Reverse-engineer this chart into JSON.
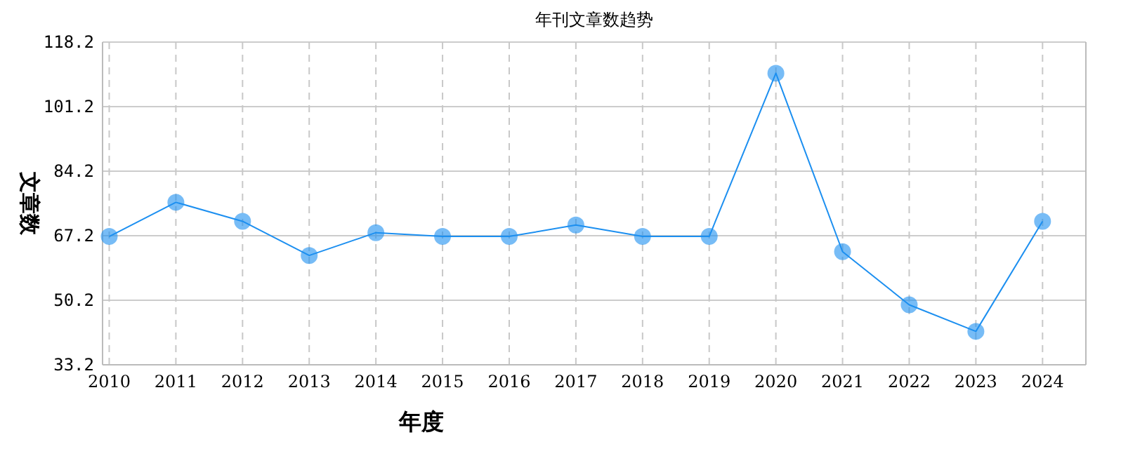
{
  "chart_data": {
    "type": "line",
    "title": "年刊文章数趋势",
    "xlabel": "年度",
    "ylabel": "文章数",
    "categories": [
      "2010",
      "2011",
      "2012",
      "2013",
      "2014",
      "2015",
      "2016",
      "2017",
      "2018",
      "2019",
      "2020",
      "2021",
      "2022",
      "2023",
      "2024"
    ],
    "series": [
      {
        "color": "#1c8ff0",
        "values": [
          67,
          76,
          71,
          62,
          68,
          67,
          67,
          70,
          67,
          67,
          110,
          63,
          49,
          42,
          71
        ]
      }
    ],
    "ylim": [
      33.2,
      118.2
    ],
    "yticks": [
      {
        "value": 33.2,
        "label": "33.2"
      },
      {
        "value": 50.2,
        "label": "50.2"
      },
      {
        "value": 67.2,
        "label": "67.2"
      },
      {
        "value": 84.2,
        "label": "84.2"
      },
      {
        "value": 101.2,
        "label": "101.2"
      },
      {
        "value": 118.2,
        "label": "118.2"
      }
    ],
    "grid": true,
    "marker": "circle",
    "line_style": "solid"
  }
}
